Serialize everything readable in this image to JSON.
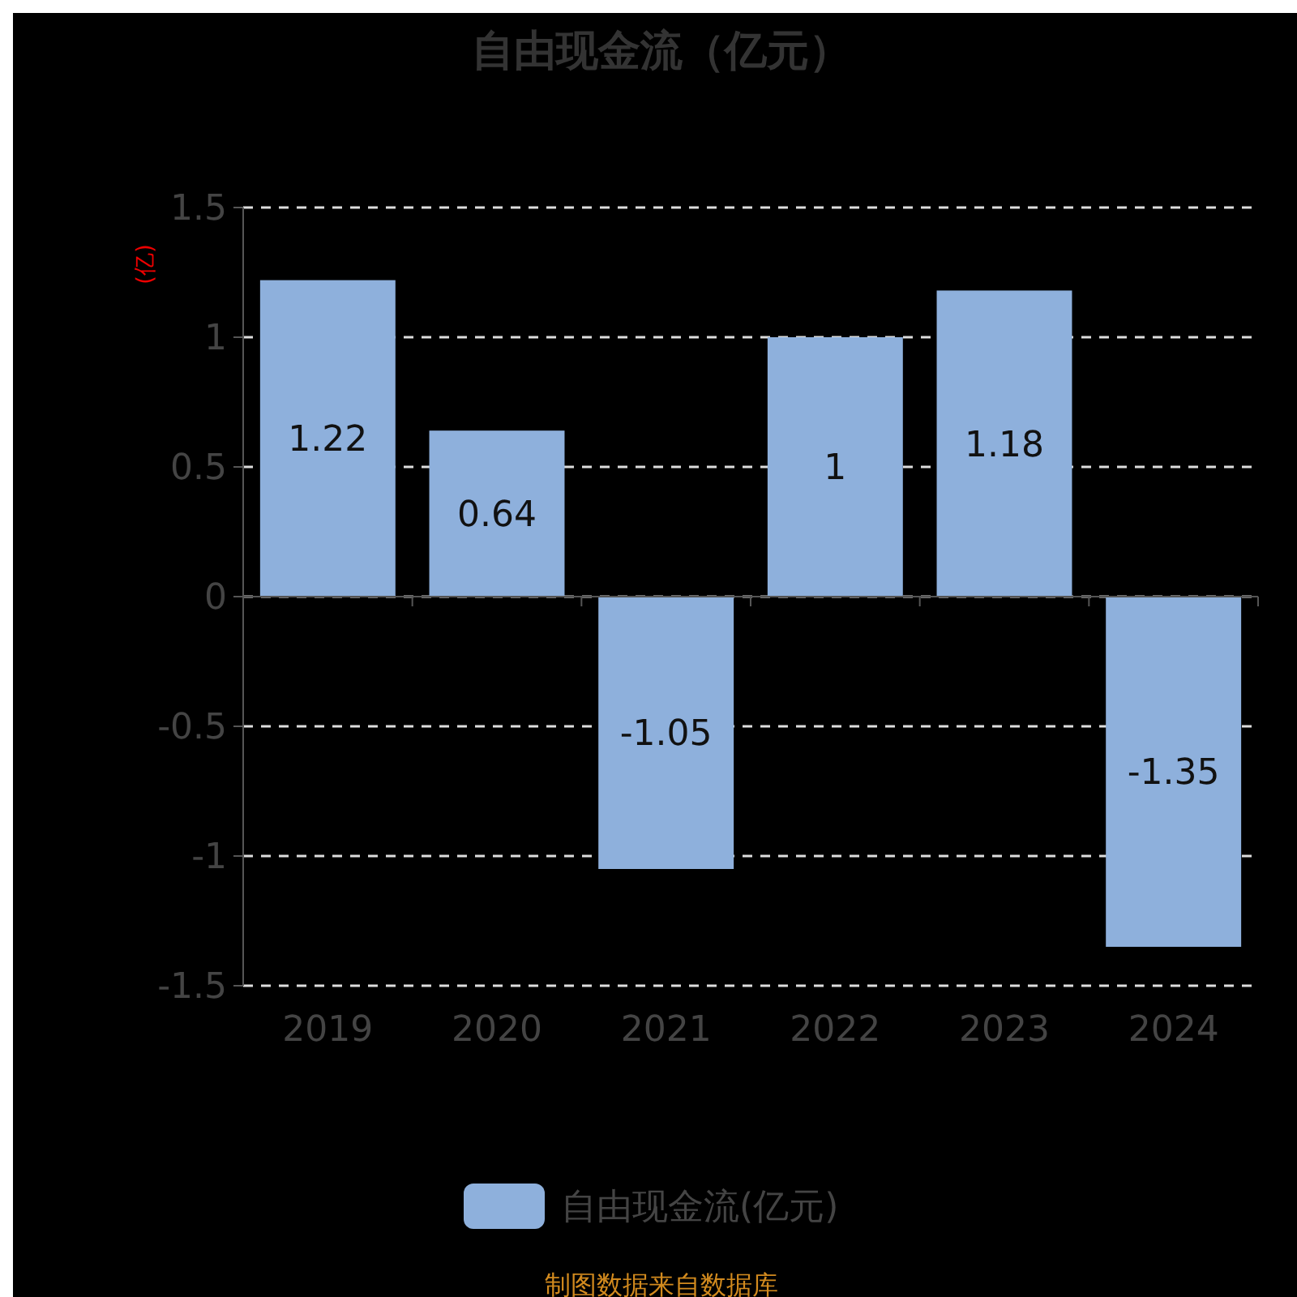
{
  "chart_data": {
    "type": "bar",
    "title": "自由现金流（亿元）",
    "ylabel": "(亿)",
    "categories": [
      "2019",
      "2020",
      "2021",
      "2022",
      "2023",
      "2024"
    ],
    "series": [
      {
        "name": "自由现金流(亿元)",
        "color": "#8eb0dc",
        "values": [
          1.22,
          0.64,
          -1.05,
          1,
          1.18,
          -1.35
        ]
      }
    ],
    "ylim": [
      -1.5,
      1.5
    ],
    "yticks": [
      -1.5,
      -1,
      -0.5,
      0,
      0.5,
      1,
      1.5
    ],
    "grid": "y",
    "legend": "bottom",
    "data_labels": true,
    "annotations": [
      "制图数据来自数据库"
    ]
  }
}
